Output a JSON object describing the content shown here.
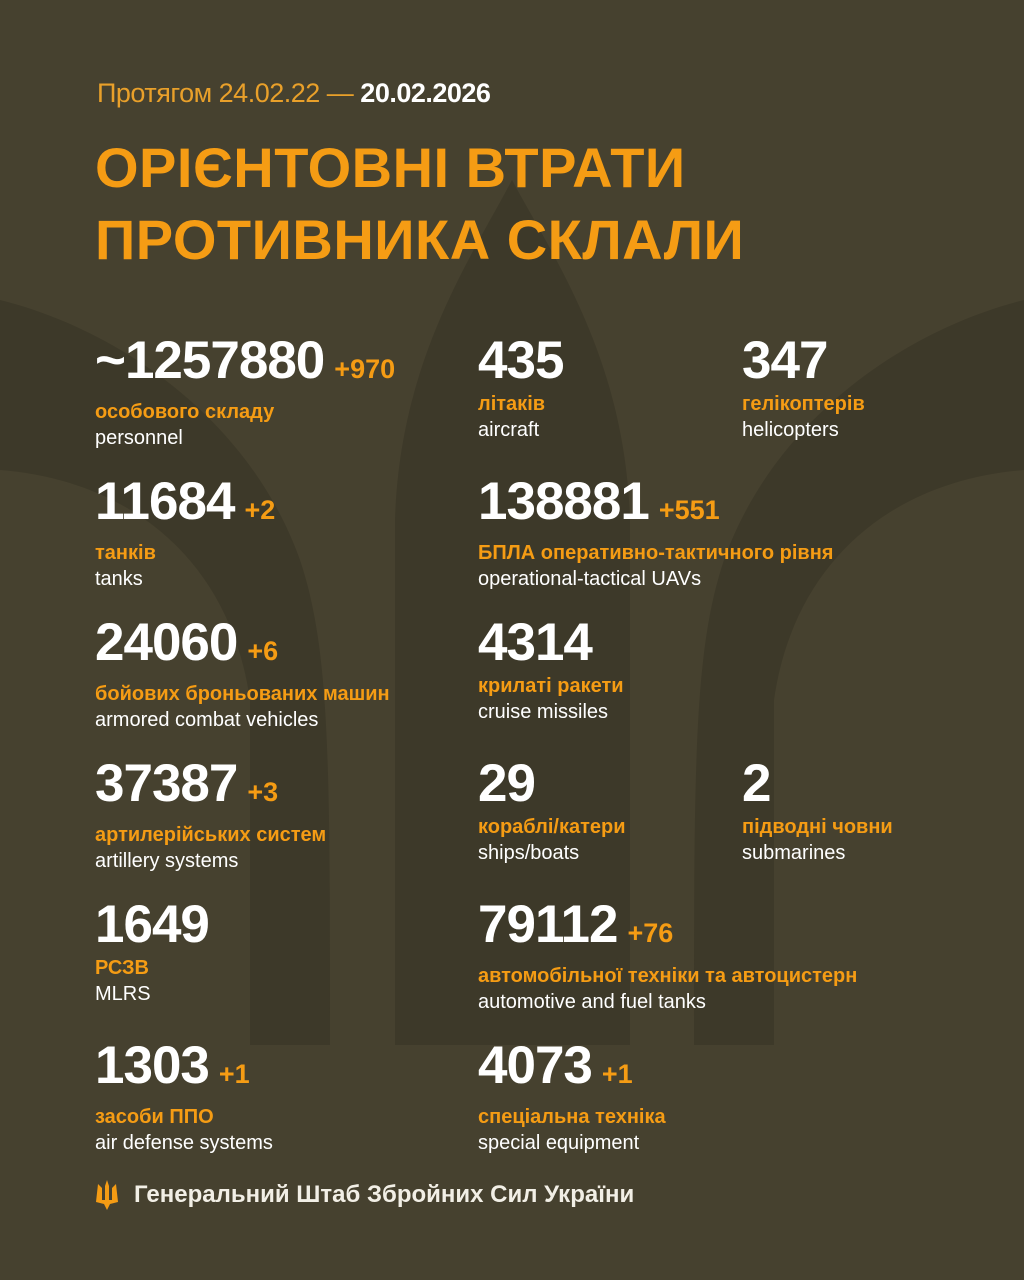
{
  "header": {
    "period_prefix": "Протягом 24.02.22 —",
    "period_end": "20.02.2026",
    "title_line1": "ОРІЄНТОВНІ ВТРАТИ",
    "title_line2": "ПРОТИВНИКА СКЛАЛИ"
  },
  "colors": {
    "background": "#46412f",
    "accent": "#f59c14",
    "text": "#ffffff"
  },
  "stats": [
    {
      "value": "~1257880",
      "delta": "+970",
      "ua": "особового складу",
      "en": "personnel"
    },
    {
      "value": "435",
      "delta": "",
      "ua": "літаків",
      "en": "aircraft"
    },
    {
      "value": "347",
      "delta": "",
      "ua": "гелікоптерів",
      "en": "helicopters"
    },
    {
      "value": "11684",
      "delta": "+2",
      "ua": "танків",
      "en": "tanks"
    },
    {
      "value": "138881",
      "delta": "+551",
      "ua": "БПЛА оперативно-тактичного рівня",
      "en": "operational-tactical UAVs"
    },
    {
      "value": "24060",
      "delta": "+6",
      "ua": "бойових броньованих машин",
      "en": "armored combat vehicles"
    },
    {
      "value": "4314",
      "delta": "",
      "ua": "крилаті ракети",
      "en": "cruise missiles"
    },
    {
      "value": "37387",
      "delta": "+3",
      "ua": "артилерійських систем",
      "en": "artillery systems"
    },
    {
      "value": "29",
      "delta": "",
      "ua": "кораблі/катери",
      "en": "ships/boats"
    },
    {
      "value": "2",
      "delta": "",
      "ua": "підводні човни",
      "en": "submarines"
    },
    {
      "value": "1649",
      "delta": "",
      "ua": "РСЗВ",
      "en": "MLRS"
    },
    {
      "value": "79112",
      "delta": "+76",
      "ua": "автомобільної техніки та автоцистерн",
      "en": "automotive and fuel tanks"
    },
    {
      "value": "1303",
      "delta": "+1",
      "ua": "засоби ППО",
      "en": "air defense systems"
    },
    {
      "value": "4073",
      "delta": "+1",
      "ua": "спеціальна техніка",
      "en": "special equipment"
    }
  ],
  "footer": {
    "icon": "trident-icon",
    "text": "Генеральний Штаб Збройних Сил України"
  }
}
